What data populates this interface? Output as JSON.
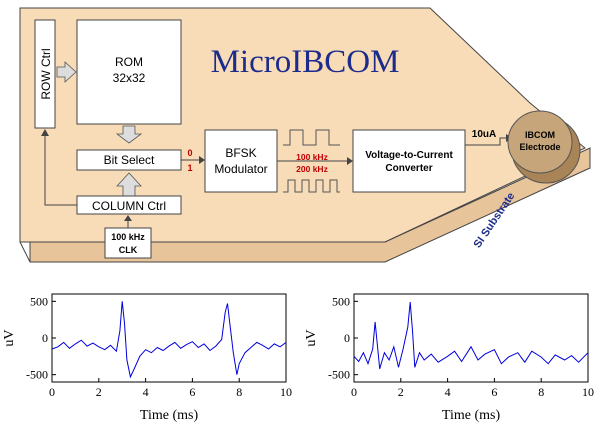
{
  "diagram": {
    "title": "MicroIBCOM",
    "row_ctrl": "ROW Ctrl",
    "rom_line1": "ROM",
    "rom_line2": "32x32",
    "bit_select": "Bit Select",
    "column_ctrl": "COLUMN Ctrl",
    "clk_line1": "100 kHz",
    "clk_line2": "CLK",
    "bit0": "0",
    "bit1": "1",
    "bfsk_line1": "BFSK",
    "bfsk_line2": "Modulator",
    "freq_high": "100 kHz",
    "freq_low": "200 kHz",
    "vtc_line1": "Voltage-to-Current",
    "vtc_line2": "Converter",
    "current": "10uA",
    "electrode_line1": "IBCOM",
    "electrode_line2": "Electrode",
    "substrate": "SI Substrate",
    "colors": {
      "substrate_face": "#f8dcb8",
      "substrate_side": "#e8c49a",
      "electrode": "#c7a57a",
      "title": "#1c2c8c",
      "freq_red": "#c00000",
      "trace": "#0000dd"
    }
  },
  "chart_data": [
    {
      "type": "line",
      "title": "",
      "xlabel": "Time (ms)",
      "ylabel": "uV",
      "xlim": [
        0,
        10
      ],
      "ylim": [
        -600,
        600
      ],
      "xticks": [
        "0",
        "2",
        "4",
        "6",
        "8",
        "10"
      ],
      "yticks": [
        "500",
        "0",
        "-500"
      ],
      "series": [
        {
          "x": [
            0,
            0.25,
            0.5,
            0.75,
            1,
            1.25,
            1.5,
            1.75,
            2,
            2.25,
            2.5,
            2.75,
            2.9,
            3.0,
            3.1,
            3.2,
            3.35,
            3.5,
            3.75,
            4,
            4.25,
            4.5,
            4.75,
            5,
            5.25,
            5.5,
            5.75,
            6,
            6.25,
            6.5,
            6.75,
            7,
            7.25,
            7.4,
            7.5,
            7.6,
            7.75,
            7.9,
            8.0,
            8.25,
            8.5,
            8.75,
            9,
            9.25,
            9.5,
            9.75,
            10
          ],
          "y": [
            -150,
            -120,
            -60,
            -140,
            -80,
            -30,
            -110,
            -70,
            -120,
            -160,
            -100,
            -180,
            100,
            500,
            200,
            -300,
            -530,
            -430,
            -250,
            -160,
            -200,
            -130,
            -170,
            -110,
            -60,
            -140,
            -90,
            -50,
            -130,
            -80,
            -170,
            -110,
            -20,
            350,
            470,
            200,
            -200,
            -500,
            -350,
            -200,
            -130,
            -60,
            -100,
            -150,
            -80,
            -120,
            -60
          ]
        }
      ]
    },
    {
      "type": "line",
      "title": "",
      "xlabel": "Time (ms)",
      "ylabel": "uV",
      "xlim": [
        0,
        10
      ],
      "ylim": [
        -600,
        600
      ],
      "xticks": [
        "0",
        "2",
        "4",
        "6",
        "8",
        "10"
      ],
      "yticks": [
        "500",
        "0",
        "-500"
      ],
      "series": [
        {
          "x": [
            0,
            0.2,
            0.4,
            0.6,
            0.8,
            0.9,
            1.0,
            1.1,
            1.3,
            1.5,
            1.7,
            1.9,
            2.1,
            2.3,
            2.4,
            2.5,
            2.6,
            2.8,
            3.0,
            3.3,
            3.6,
            4.0,
            4.3,
            4.6,
            5.0,
            5.3,
            5.6,
            6.0,
            6.3,
            6.6,
            7.0,
            7.3,
            7.6,
            8.0,
            8.3,
            8.6,
            9.0,
            9.3,
            9.6,
            10
          ],
          "y": [
            -250,
            -320,
            -200,
            -350,
            -150,
            220,
            -100,
            -420,
            -200,
            -300,
            -120,
            -400,
            -150,
            150,
            490,
            100,
            -400,
            -200,
            -300,
            -220,
            -330,
            -250,
            -180,
            -320,
            -120,
            -300,
            -220,
            -160,
            -350,
            -260,
            -200,
            -330,
            -180,
            -260,
            -350,
            -230,
            -300,
            -240,
            -330,
            -200
          ]
        }
      ]
    }
  ]
}
